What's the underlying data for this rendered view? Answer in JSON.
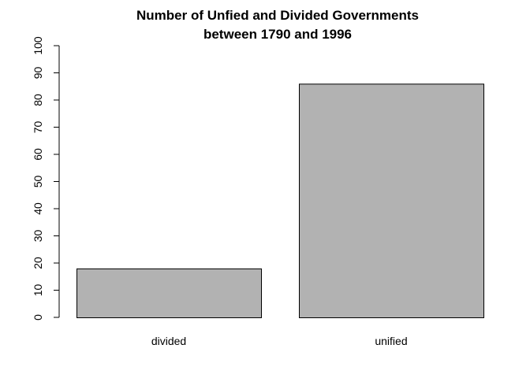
{
  "chart_data": {
    "type": "bar",
    "title_line1": "Number of Unfied and Divided Governments",
    "title_line2": "between 1790 and 1996",
    "xlabel": "",
    "ylabel": "",
    "categories": [
      "divided",
      "unified"
    ],
    "values": [
      18,
      86
    ],
    "ylim": [
      0,
      100
    ],
    "yticks": [
      0,
      10,
      20,
      30,
      40,
      50,
      60,
      70,
      80,
      90,
      100
    ],
    "bar_color": "#b2b2b2",
    "grid": false,
    "legend": "none"
  }
}
